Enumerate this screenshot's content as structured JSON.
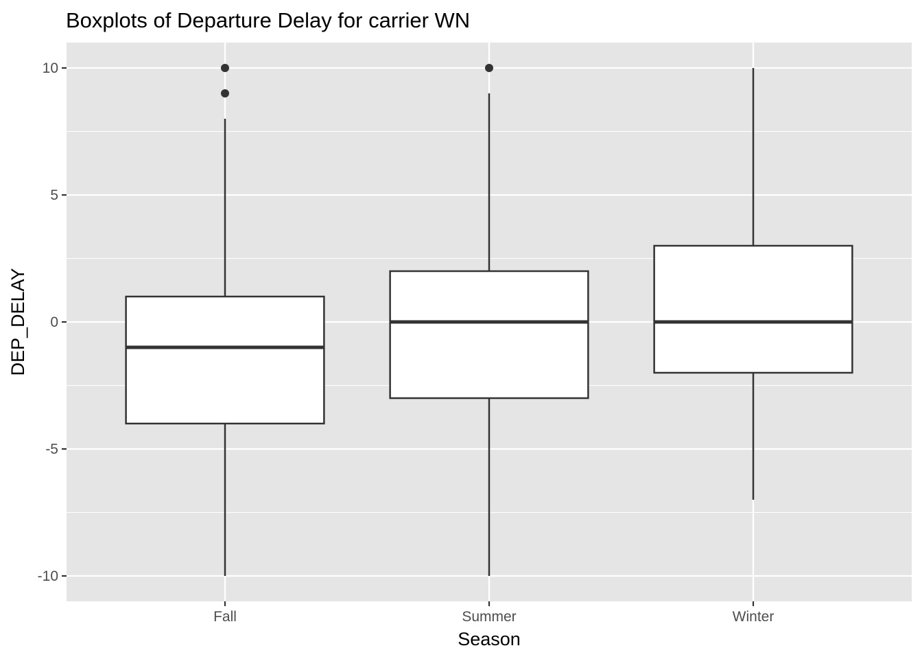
{
  "chart_data": {
    "type": "boxplot",
    "title": "Boxplots of Departure Delay for carrier WN",
    "xlabel": "Season",
    "ylabel": "DEP_DELAY",
    "categories": [
      "Fall",
      "Summer",
      "Winter"
    ],
    "yticks": [
      -10,
      -5,
      0,
      5,
      10
    ],
    "yticks_labels": [
      "-10",
      "-5",
      "0",
      "5",
      "10"
    ],
    "ylim": [
      -11,
      11
    ],
    "grid": true,
    "boxes": [
      {
        "category": "Fall",
        "whisker_low": -10,
        "q1": -4,
        "median": -1,
        "q3": 1,
        "whisker_high": 8,
        "outliers": [
          9,
          10
        ]
      },
      {
        "category": "Summer",
        "whisker_low": -10,
        "q1": -3,
        "median": 0,
        "q3": 2,
        "whisker_high": 9,
        "outliers": [
          10
        ]
      },
      {
        "category": "Winter",
        "whisker_low": -7,
        "q1": -2,
        "median": 0,
        "q3": 3,
        "whisker_high": 10,
        "outliers": []
      }
    ],
    "colors": {
      "panel_background": "#e5e5e5",
      "grid_major": "#ffffff",
      "box_fill": "#ffffff",
      "box_line": "#333333",
      "tick_text": "#4d4d4d",
      "tick_mark": "#333333"
    }
  }
}
